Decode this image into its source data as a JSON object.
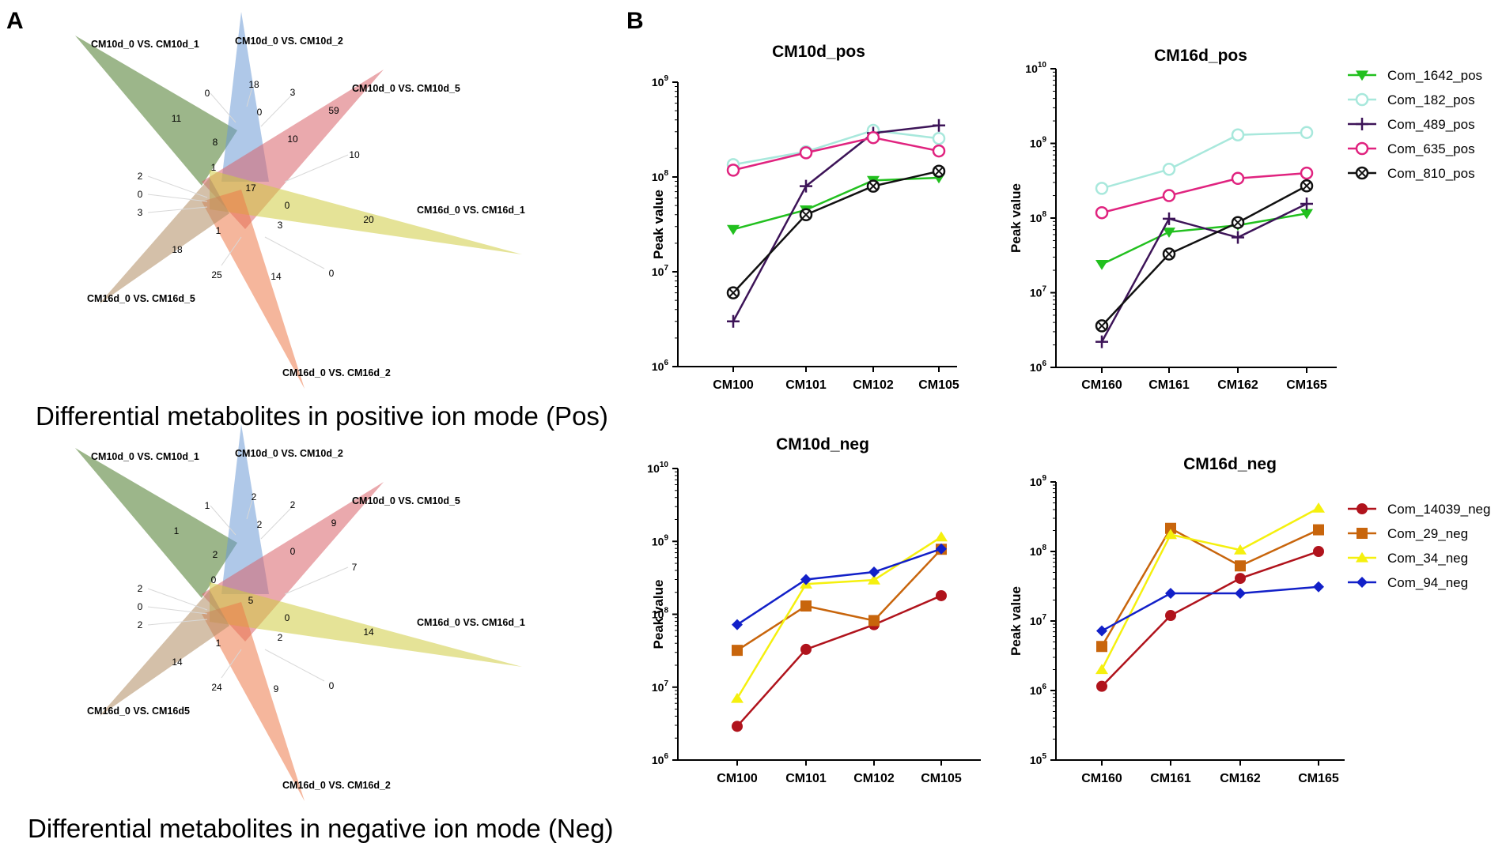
{
  "panel_labels": {
    "a": "A",
    "b": "B"
  },
  "venn": {
    "pos": {
      "caption": "Differential metabolites in positive ion mode (Pos)",
      "sets": [
        {
          "label": "CM10d_0 VS. CM10d_1",
          "color": "#4a7a2a"
        },
        {
          "label": "CM10d_0 VS. CM10d_2",
          "color": "#6e9ad6"
        },
        {
          "label": "CM10d_0 VS. CM10d_5",
          "color": "#d9636a"
        },
        {
          "label": "CM16d_0 VS. CM16d_1",
          "color": "#cfcc42"
        },
        {
          "label": "CM16d_0 VS. CM16d_2",
          "color": "#ec7a4a"
        },
        {
          "label": "CM16d_0 VS. CM16d_5",
          "color": "#b08c62"
        }
      ],
      "numbers": [
        "18",
        "0",
        "3",
        "0",
        "59",
        "11",
        "8",
        "10",
        "10",
        "1",
        "17",
        "0",
        "20",
        "2",
        "0",
        "3",
        "1",
        "3",
        "18",
        "25",
        "14",
        "0"
      ]
    },
    "neg": {
      "caption": "Differential metabolites in negative ion mode (Neg)",
      "sets": [
        {
          "label": "CM10d_0 VS. CM10d_1",
          "color": "#4a7a2a"
        },
        {
          "label": "CM10d_0 VS. CM10d_2",
          "color": "#6e9ad6"
        },
        {
          "label": "CM10d_0 VS. CM10d_5",
          "color": "#d9636a"
        },
        {
          "label": "CM16d_0 VS. CM16d_1",
          "color": "#cfcc42"
        },
        {
          "label": "CM16d_0 VS. CM16d_2",
          "color": "#ec7a4a"
        },
        {
          "label": "CM16d_0 VS. CM16d5",
          "color": "#b08c62"
        }
      ],
      "numbers": [
        "2",
        "2",
        "2",
        "1",
        "9",
        "1",
        "2",
        "0",
        "7",
        "0",
        "5",
        "0",
        "14",
        "2",
        "0",
        "2",
        "1",
        "2",
        "14",
        "24",
        "9",
        "0"
      ]
    }
  },
  "chart_data": [
    {
      "type": "line",
      "title": "CM10d_pos",
      "ylabel": "Peak value",
      "yscale": "log",
      "ylim": [
        1000000,
        1000000000
      ],
      "ytick_exponents": [
        6,
        7,
        8,
        9
      ],
      "categories": [
        "CM100",
        "CM101",
        "CM102",
        "CM105"
      ],
      "series": [
        {
          "name": "Com_1642_pos",
          "color": "#22c01f",
          "marker": "triangle-down",
          "values": [
            28000000,
            45000000,
            92000000,
            98000000
          ]
        },
        {
          "name": "Com_182_pos",
          "color": "#a8e8dc",
          "marker": "circle-open",
          "values": [
            135000000,
            185000000,
            310000000,
            255000000
          ]
        },
        {
          "name": "Com_489_pos",
          "color": "#3d1458",
          "marker": "plus",
          "values": [
            3000000,
            80000000,
            290000000,
            350000000
          ]
        },
        {
          "name": "Com_635_pos",
          "color": "#e0237f",
          "marker": "circle-open",
          "values": [
            118000000,
            180000000,
            260000000,
            188000000
          ]
        },
        {
          "name": "Com_810_pos",
          "color": "#111111",
          "marker": "circle-x",
          "values": [
            6000000,
            40000000,
            80000000,
            115000000
          ]
        }
      ]
    },
    {
      "type": "line",
      "title": "CM16d_pos",
      "ylabel": "Peak value",
      "yscale": "log",
      "ylim": [
        1000000,
        10000000000
      ],
      "ytick_exponents": [
        6,
        7,
        8,
        9,
        10
      ],
      "categories": [
        "CM160",
        "CM161",
        "CM162",
        "CM165"
      ],
      "series": [
        {
          "name": "Com_1642_pos",
          "color": "#22c01f",
          "marker": "triangle-down",
          "values": [
            24000000,
            65000000,
            80000000,
            115000000
          ]
        },
        {
          "name": "Com_182_pos",
          "color": "#a8e8dc",
          "marker": "circle-open",
          "values": [
            250000000,
            450000000,
            1300000000,
            1400000000
          ]
        },
        {
          "name": "Com_489_pos",
          "color": "#3d1458",
          "marker": "plus",
          "values": [
            2200000,
            98000000,
            55000000,
            155000000
          ]
        },
        {
          "name": "Com_635_pos",
          "color": "#e0237f",
          "marker": "circle-open",
          "values": [
            118000000,
            200000000,
            340000000,
            400000000
          ]
        },
        {
          "name": "Com_810_pos",
          "color": "#111111",
          "marker": "circle-x",
          "values": [
            3600000,
            33000000,
            87000000,
            270000000
          ]
        }
      ]
    },
    {
      "type": "line",
      "title": "CM10d_neg",
      "ylabel": "Peak value",
      "yscale": "log",
      "ylim": [
        1000000,
        10000000000
      ],
      "ytick_exponents": [
        6,
        7,
        8,
        9,
        10
      ],
      "categories": [
        "CM100",
        "CM101",
        "CM102",
        "CM105"
      ],
      "series": [
        {
          "name": "Com_14039_neg",
          "color": "#b0131c",
          "marker": "circle",
          "values": [
            2900000,
            33000000,
            72000000,
            180000000
          ]
        },
        {
          "name": "Com_29_neg",
          "color": "#c8650c",
          "marker": "square",
          "values": [
            32000000,
            130000000,
            82000000,
            780000000
          ]
        },
        {
          "name": "Com_34_neg",
          "color": "#f5f00e",
          "marker": "triangle-up",
          "values": [
            7000000,
            260000000,
            295000000,
            1150000000
          ]
        },
        {
          "name": "Com_94_neg",
          "color": "#1220c8",
          "marker": "diamond",
          "values": [
            72000000,
            300000000,
            380000000,
            790000000
          ]
        }
      ]
    },
    {
      "type": "line",
      "title": "CM16d_neg",
      "ylabel": "Peak value",
      "yscale": "log",
      "ylim": [
        100000,
        1000000000
      ],
      "ytick_exponents": [
        5,
        6,
        7,
        8,
        9
      ],
      "categories": [
        "CM160",
        "CM161",
        "CM162",
        "CM165"
      ],
      "series": [
        {
          "name": "Com_14039_neg",
          "color": "#b0131c",
          "marker": "circle",
          "values": [
            1150000,
            12000000,
            41000000,
            100000000
          ]
        },
        {
          "name": "Com_29_neg",
          "color": "#c8650c",
          "marker": "square",
          "values": [
            4300000,
            215000000,
            62000000,
            205000000
          ]
        },
        {
          "name": "Com_34_neg",
          "color": "#f5f00e",
          "marker": "triangle-up",
          "values": [
            2000000,
            175000000,
            105000000,
            420000000
          ]
        },
        {
          "name": "Com_94_neg",
          "color": "#1220c8",
          "marker": "diamond",
          "values": [
            7200000,
            25000000,
            25000000,
            31000000
          ]
        }
      ]
    }
  ]
}
